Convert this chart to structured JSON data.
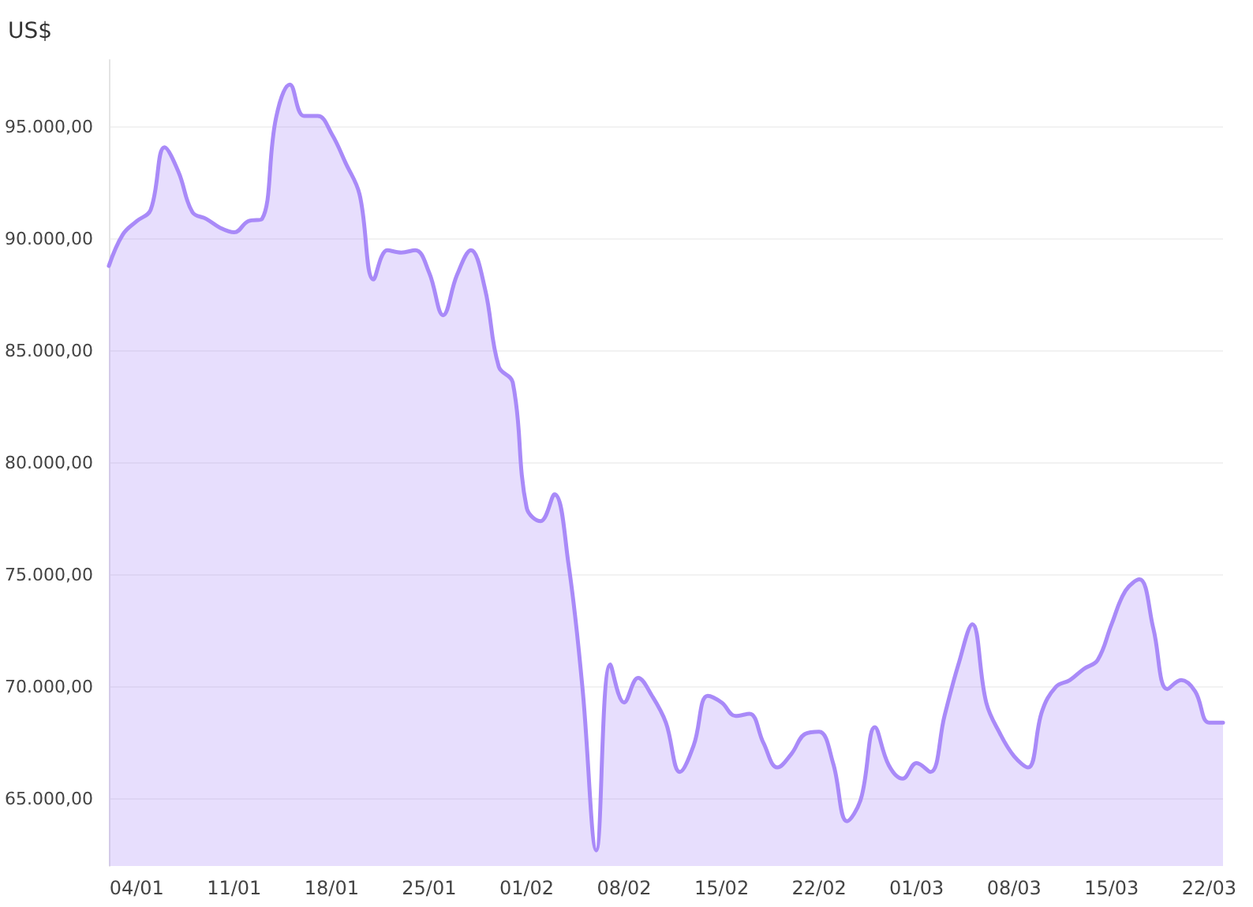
{
  "chart_data": {
    "type": "area",
    "ylabel": "US$",
    "x": [
      "--01-02",
      "--01-03",
      "--01-04",
      "--01-05",
      "--01-06",
      "--01-07",
      "--01-08",
      "--01-09",
      "--01-10",
      "--01-11",
      "--01-12",
      "--01-13",
      "--01-14",
      "--01-15",
      "--01-16",
      "--01-17",
      "--01-18",
      "--01-19",
      "--01-20",
      "--01-21",
      "--01-22",
      "--01-23",
      "--01-24",
      "--01-25",
      "--01-26",
      "--01-27",
      "--01-28",
      "--01-29",
      "--01-30",
      "--01-31",
      "--02-01",
      "--02-02",
      "--02-03",
      "--02-04",
      "--02-05",
      "--02-06",
      "--02-07",
      "--02-08",
      "--02-09",
      "--02-10",
      "--02-11",
      "--02-12",
      "--02-13",
      "--02-14",
      "--02-15",
      "--02-16",
      "--02-17",
      "--02-18",
      "--02-19",
      "--02-20",
      "--02-21",
      "--02-22",
      "--02-23",
      "--02-24",
      "--02-25",
      "--02-26",
      "--02-27",
      "--02-28",
      "--03-01",
      "--03-02",
      "--03-03",
      "--03-04",
      "--03-05",
      "--03-06",
      "--03-07",
      "--03-08",
      "--03-09",
      "--03-10",
      "--03-11",
      "--03-12",
      "--03-13",
      "--03-14",
      "--03-15",
      "--03-16",
      "--03-17",
      "--03-18",
      "--03-19",
      "--03-20",
      "--03-21",
      "--03-22",
      "--03-23"
    ],
    "series": [
      {
        "color": "#a98af8",
        "values": [
          88800,
          90200,
          90800,
          91300,
          94100,
          93000,
          91200,
          90900,
          90500,
          90300,
          90800,
          90900,
          95400,
          96900,
          95500,
          95500,
          94700,
          93400,
          92000,
          88200,
          89500,
          89400,
          89500,
          88500,
          86600,
          88400,
          89500,
          87800,
          84300,
          83600,
          78000,
          77400,
          78600,
          75500,
          70000,
          62700,
          71000,
          69300,
          70400,
          69600,
          68400,
          66200,
          67400,
          69600,
          69300,
          68700,
          68800,
          67500,
          66400,
          67000,
          67900,
          68000,
          66600,
          64000,
          65000,
          68200,
          66500,
          65900,
          66600,
          66200,
          68700,
          71000,
          72800,
          69300,
          67900,
          66900,
          66400,
          68900,
          70000,
          70300,
          70800,
          71200,
          72800,
          74300,
          74800,
          72600,
          69900,
          70300,
          69800,
          68400,
          68400
        ]
      }
    ],
    "xlim": [
      "--01-02",
      "--03-23"
    ],
    "xticks": [
      {
        "value": "--01-04",
        "label": "04/01"
      },
      {
        "value": "--01-11",
        "label": "11/01"
      },
      {
        "value": "--01-18",
        "label": "18/01"
      },
      {
        "value": "--01-25",
        "label": "25/01"
      },
      {
        "value": "--02-01",
        "label": "01/02"
      },
      {
        "value": "--02-08",
        "label": "08/02"
      },
      {
        "value": "--02-15",
        "label": "15/02"
      },
      {
        "value": "--02-22",
        "label": "22/02"
      },
      {
        "value": "--03-01",
        "label": "01/03"
      },
      {
        "value": "--03-08",
        "label": "08/03"
      },
      {
        "value": "--03-15",
        "label": "15/03"
      },
      {
        "value": "--03-22",
        "label": "22/03"
      }
    ],
    "ylim": [
      62000,
      98000
    ],
    "yticks": [
      {
        "value": 65000,
        "label": "65.000,00"
      },
      {
        "value": 70000,
        "label": "70.000,00"
      },
      {
        "value": 75000,
        "label": "75.000,00"
      },
      {
        "value": 80000,
        "label": "80.000,00"
      },
      {
        "value": 85000,
        "label": "85.000,00"
      },
      {
        "value": 90000,
        "label": "90.000,00"
      },
      {
        "value": 95000,
        "label": "95.000,00"
      }
    ],
    "grid": "y",
    "marker": "none"
  }
}
